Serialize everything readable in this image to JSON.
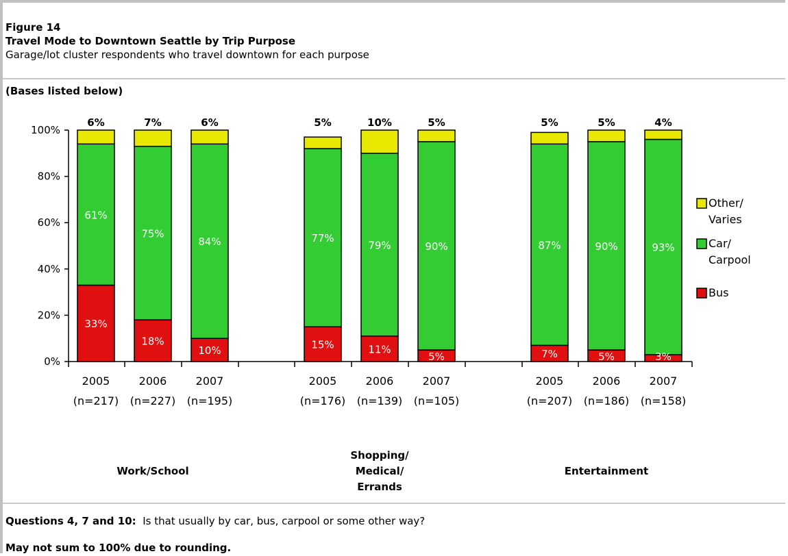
{
  "header": {
    "figure_number": "Figure 14",
    "title": "Travel Mode to Downtown Seattle by Trip Purpose",
    "subtitle": "Garage/lot cluster respondents who travel downtown for each purpose",
    "bases_note": "(Bases listed below)"
  },
  "footer": {
    "question_label": "Questions 4, 7 and 10:",
    "question_text": "Is that usually by car, bus, carpool or some other way?",
    "rounding_note": "May not sum to 100% due to rounding."
  },
  "chart_data": {
    "type": "bar",
    "stacked": true,
    "ylim": [
      0,
      100
    ],
    "y_ticks": [
      "0%",
      "20%",
      "40%",
      "60%",
      "80%",
      "100%"
    ],
    "groups": [
      {
        "label": "Work/School",
        "bars": [
          {
            "year": "2005",
            "base": "(n=217)",
            "bus": 33,
            "car": 61,
            "other": 6,
            "bus_label": "33%",
            "car_label": "61%",
            "other_label": "6%"
          },
          {
            "year": "2006",
            "base": "(n=227)",
            "bus": 18,
            "car": 75,
            "other": 7,
            "bus_label": "18%",
            "car_label": "75%",
            "other_label": "7%"
          },
          {
            "year": "2007",
            "base": "(n=195)",
            "bus": 10,
            "car": 84,
            "other": 6,
            "bus_label": "10%",
            "car_label": "84%",
            "other_label": "6%"
          }
        ]
      },
      {
        "label": "Shopping/\nMedical/\nErrands",
        "bars": [
          {
            "year": "2005",
            "base": "(n=176)",
            "bus": 15,
            "car": 77,
            "other": 5,
            "bus_label": "15%",
            "car_label": "77%",
            "other_label": "5%"
          },
          {
            "year": "2006",
            "base": "(n=139)",
            "bus": 11,
            "car": 79,
            "other": 10,
            "bus_label": "11%",
            "car_label": "79%",
            "other_label": "10%"
          },
          {
            "year": "2007",
            "base": "(n=105)",
            "bus": 5,
            "car": 90,
            "other": 5,
            "bus_label": "5%",
            "car_label": "90%",
            "other_label": "5%"
          }
        ]
      },
      {
        "label": "Entertainment",
        "bars": [
          {
            "year": "2005",
            "base": "(n=207)",
            "bus": 7,
            "car": 87,
            "other": 5,
            "bus_label": "7%",
            "car_label": "87%",
            "other_label": "5%"
          },
          {
            "year": "2006",
            "base": "(n=186)",
            "bus": 5,
            "car": 90,
            "other": 5,
            "bus_label": "5%",
            "car_label": "90%",
            "other_label": "5%"
          },
          {
            "year": "2007",
            "base": "(n=158)",
            "bus": 3,
            "car": 93,
            "other": 4,
            "bus_label": "3%",
            "car_label": "93%",
            "other_label": "4%"
          }
        ]
      }
    ],
    "legend": [
      {
        "name": "Other/ Varies",
        "color": "#e8e800",
        "key": "other"
      },
      {
        "name": "Car/ Carpool",
        "color": "#33cc33",
        "key": "car"
      },
      {
        "name": "Bus",
        "color": "#e01010",
        "key": "bus"
      }
    ],
    "legend_position": "right"
  }
}
